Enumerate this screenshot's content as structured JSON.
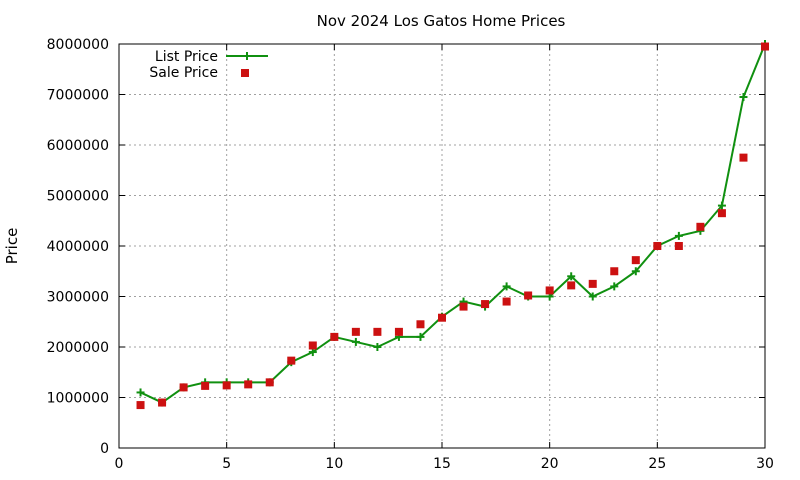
{
  "chart_data": {
    "type": "line",
    "title": "Nov 2024 Los Gatos Home Prices",
    "xlabel": "",
    "ylabel": "Price",
    "xlim": [
      0,
      30
    ],
    "ylim": [
      0,
      8000000
    ],
    "x_ticks": [
      0,
      5,
      10,
      15,
      20,
      25,
      30
    ],
    "x_tick_labels": [
      "0",
      "5",
      "10",
      "15",
      "20",
      "25",
      "30"
    ],
    "y_ticks": [
      0,
      1000000,
      2000000,
      3000000,
      4000000,
      5000000,
      6000000,
      7000000,
      8000000
    ],
    "y_tick_labels": [
      "0",
      "1000000",
      "2000000",
      "3000000",
      "4000000",
      "5000000",
      "6000000",
      "7000000",
      "8000000"
    ],
    "grid": true,
    "legend_position": "top-left",
    "x": [
      1,
      2,
      3,
      4,
      5,
      6,
      7,
      8,
      9,
      10,
      11,
      12,
      13,
      14,
      15,
      16,
      17,
      18,
      19,
      20,
      21,
      22,
      23,
      24,
      25,
      26,
      27,
      28,
      29,
      30
    ],
    "series": [
      {
        "name": "List Price",
        "style": "line-with-plus-markers",
        "color": "#109010",
        "values": [
          1100000,
          900000,
          1200000,
          1300000,
          1300000,
          1300000,
          1300000,
          1700000,
          1900000,
          2200000,
          2100000,
          2000000,
          2200000,
          2200000,
          2600000,
          2900000,
          2800000,
          3200000,
          3000000,
          3000000,
          3400000,
          3000000,
          3200000,
          3500000,
          4000000,
          4200000,
          4300000,
          4800000,
          6950000,
          8000000
        ]
      },
      {
        "name": "Sale Price",
        "style": "square-markers",
        "color": "#cc1111",
        "values": [
          850000,
          900000,
          1200000,
          1230000,
          1240000,
          1260000,
          1300000,
          1730000,
          2030000,
          2200000,
          2300000,
          2300000,
          2300000,
          2450000,
          2580000,
          2800000,
          2850000,
          2900000,
          3020000,
          3120000,
          3220000,
          3250000,
          3500000,
          3720000,
          4000000,
          4000000,
          4380000,
          4650000,
          5750000,
          7950000
        ]
      }
    ]
  }
}
